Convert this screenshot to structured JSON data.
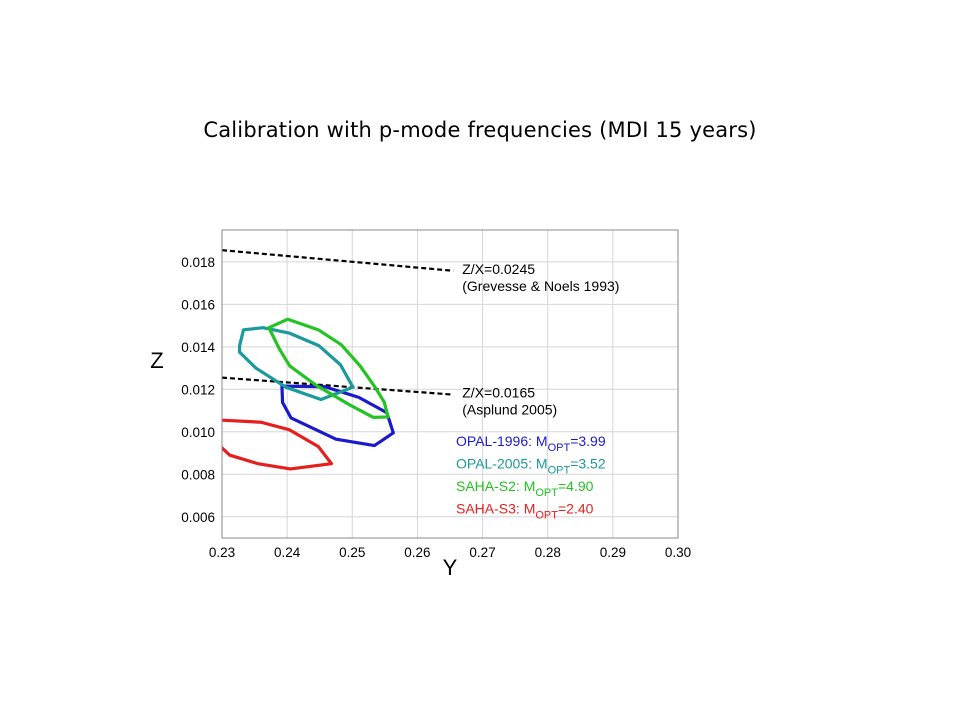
{
  "slide": {
    "title": "Calibration with p-mode frequencies (MDI 15 years)"
  },
  "chart_data": {
    "type": "scatter",
    "xlabel": "Y",
    "ylabel": "Z",
    "xlim": [
      0.23,
      0.3
    ],
    "ylim": [
      0.005,
      0.0195
    ],
    "xticks": [
      "0.23",
      "0.24",
      "0.25",
      "0.26",
      "0.27",
      "0.28",
      "0.29",
      "0.30"
    ],
    "yticks": [
      "0.006",
      "0.008",
      "0.010",
      "0.012",
      "0.014",
      "0.016",
      "0.018"
    ],
    "xtick_values": [
      0.23,
      0.24,
      0.25,
      0.26,
      0.27,
      0.28,
      0.29,
      0.3
    ],
    "ytick_values": [
      0.006,
      0.008,
      0.01,
      0.012,
      0.014,
      0.016,
      0.018
    ],
    "grid": true,
    "reference_lines": [
      {
        "name": "Z/X=0.0245",
        "labels": [
          "Z/X=0.0245",
          "(Grevesse & Noels 1993)"
        ],
        "color": "#000000",
        "style": "dashed",
        "x": [
          0.23,
          0.2655
        ],
        "y": [
          0.01855,
          0.01758
        ]
      },
      {
        "name": "Z/X=0.0165",
        "labels": [
          "Z/X=0.0165",
          "(Asplund 2005)"
        ],
        "color": "#000000",
        "style": "dashed",
        "x": [
          0.23,
          0.2655
        ],
        "y": [
          0.01255,
          0.01175
        ]
      }
    ],
    "series": [
      {
        "name": "OPAL-1996",
        "legend_prefix": "OPAL-1996: M",
        "legend_sub": "OPT",
        "legend_suffix": "=3.99",
        "color": "#1a1acc",
        "closed": true,
        "x": [
          0.2392,
          0.2458,
          0.251,
          0.2553,
          0.2563,
          0.2534,
          0.2475,
          0.2406,
          0.2393
        ],
        "y": [
          0.01215,
          0.01212,
          0.01162,
          0.0109,
          0.00995,
          0.00935,
          0.00965,
          0.01065,
          0.01138
        ]
      },
      {
        "name": "OPAL-2005",
        "legend_prefix": "OPAL-2005: M",
        "legend_sub": "OPT",
        "legend_suffix": "=3.52",
        "color": "#1a9a9a",
        "closed": true,
        "x": [
          0.2327,
          0.2333,
          0.2363,
          0.2403,
          0.2449,
          0.2482,
          0.2501,
          0.2452,
          0.2398,
          0.2352,
          0.2327
        ],
        "y": [
          0.01405,
          0.0148,
          0.0149,
          0.01465,
          0.01405,
          0.01315,
          0.0121,
          0.01152,
          0.0121,
          0.013,
          0.01375
        ]
      },
      {
        "name": "SAHA-S2",
        "legend_prefix": "SAHA-S2: M",
        "legend_sub": "OPT",
        "legend_suffix": "=4.90",
        "color": "#22c322",
        "closed": true,
        "x": [
          0.2372,
          0.2401,
          0.2448,
          0.2483,
          0.2512,
          0.2535,
          0.2549,
          0.2555,
          0.2532,
          0.2497,
          0.2444,
          0.2404,
          0.2388,
          0.2372
        ],
        "y": [
          0.0149,
          0.0153,
          0.0148,
          0.0141,
          0.0131,
          0.0121,
          0.0114,
          0.0107,
          0.01068,
          0.01125,
          0.0122,
          0.0131,
          0.0139,
          0.0149
        ]
      },
      {
        "name": "SAHA-S3",
        "legend_prefix": "SAHA-S3: M",
        "legend_sub": "OPT",
        "legend_suffix": "=2.40",
        "color": "#e61e1e",
        "closed": false,
        "x": [
          0.2298,
          0.236,
          0.2403,
          0.2448,
          0.2468,
          0.2405,
          0.2355,
          0.2312,
          0.2298
        ],
        "y": [
          0.01055,
          0.01045,
          0.0101,
          0.0093,
          0.0085,
          0.00825,
          0.0085,
          0.0089,
          0.0093
        ]
      }
    ]
  }
}
